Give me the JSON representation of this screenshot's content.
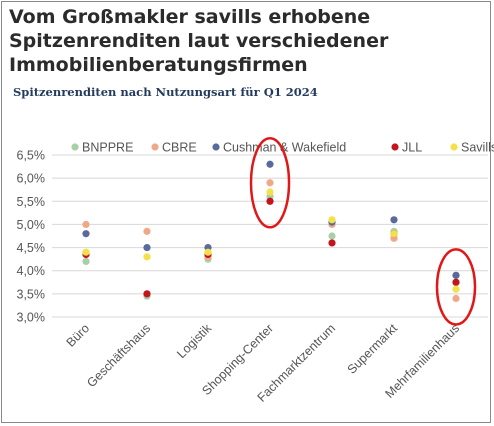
{
  "heading": {
    "title_line1": "Vom Großmakler savills erhobene",
    "title_line2": "Spitzenrenditen laut verschiedener",
    "title_line3": "Immobilienberatungsfirmen"
  },
  "colors": {
    "BNPPRE": "#a8cfa8",
    "CBRE": "#f0a888",
    "Cushman & Wakefield": "#5a6a9a",
    "JLL": "#c4141c",
    "Savills": "#f4e048",
    "highlight_ring": "#e01818",
    "gridline": "#d8d8d8"
  },
  "chart_data": {
    "type": "scatter",
    "title": "Spitzenrenditen nach Nutzungsart für Q1 2024",
    "ylim": [
      3.0,
      6.5
    ],
    "yticks": [
      "3,0%",
      "3,5%",
      "4,0%",
      "4,5%",
      "5,0%",
      "5,5%",
      "6,0%",
      "6,5%"
    ],
    "ytick_values": [
      3.0,
      3.5,
      4.0,
      4.5,
      5.0,
      5.5,
      6.0,
      6.5
    ],
    "grid": "horizontal",
    "legend_position": "top",
    "categories": [
      "Büro",
      "Geschäftshaus",
      "Logistik",
      "Shopping-Center",
      "Fachmarktzentrum",
      "Supermarkt",
      "Mehrfamilienhaus"
    ],
    "series": [
      {
        "name": "BNPPRE",
        "values": [
          4.2,
          3.45,
          4.25,
          5.6,
          4.75,
          4.85,
          3.75
        ]
      },
      {
        "name": "CBRE",
        "values": [
          5.0,
          4.85,
          4.3,
          5.9,
          5.0,
          4.7,
          3.4
        ]
      },
      {
        "name": "Cushman & Wakefield",
        "values": [
          4.8,
          4.5,
          4.5,
          6.3,
          5.05,
          5.1,
          3.9
        ]
      },
      {
        "name": "JLL",
        "values": [
          4.35,
          3.5,
          4.35,
          5.5,
          4.6,
          4.8,
          3.75
        ]
      },
      {
        "name": "Savills",
        "values": [
          4.4,
          4.3,
          4.4,
          5.7,
          5.1,
          4.8,
          3.6
        ]
      }
    ],
    "highlighted_categories": [
      "Shopping-Center",
      "Mehrfamilienhaus"
    ]
  }
}
